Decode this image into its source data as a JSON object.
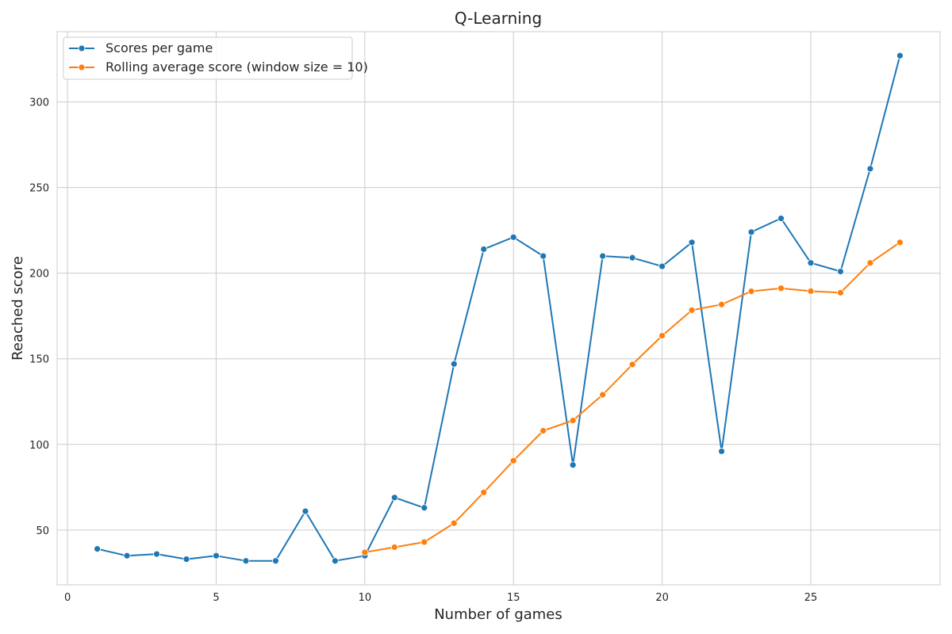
{
  "chart_data": {
    "type": "line",
    "title": "Q-Learning",
    "xlabel": "Number of games",
    "ylabel": "Reached score",
    "xlim": [
      -0.35,
      29.35
    ],
    "ylim": [
      18,
      341
    ],
    "xticks": [
      0,
      5,
      10,
      15,
      20,
      25
    ],
    "yticks": [
      50,
      100,
      150,
      200,
      250,
      300
    ],
    "grid": true,
    "legend_position": "upper left",
    "series": [
      {
        "name": "Scores per game",
        "color": "#1f77b4",
        "x": [
          1,
          2,
          3,
          4,
          5,
          6,
          7,
          8,
          9,
          10,
          11,
          12,
          13,
          14,
          15,
          16,
          17,
          18,
          19,
          20,
          21,
          22,
          23,
          24,
          25,
          26,
          27,
          28
        ],
        "y": [
          39,
          35,
          36,
          33,
          35,
          32,
          32,
          61,
          32,
          35,
          69,
          63,
          147,
          214,
          221,
          210,
          88,
          210,
          209,
          204,
          218,
          96,
          224,
          232,
          206,
          201,
          261,
          327
        ]
      },
      {
        "name": "Rolling average score (window size = 10)",
        "color": "#ff7f0e",
        "x": [
          10,
          11,
          12,
          13,
          14,
          15,
          16,
          17,
          18,
          19,
          20,
          21,
          22,
          23,
          24,
          25,
          26,
          27,
          28
        ],
        "y": [
          37,
          40,
          43,
          54,
          72,
          90.5,
          108,
          114,
          129,
          146.7,
          163.5,
          178.4,
          181.7,
          189.4,
          191.2,
          189.5,
          188.6,
          206,
          218
        ]
      }
    ]
  }
}
